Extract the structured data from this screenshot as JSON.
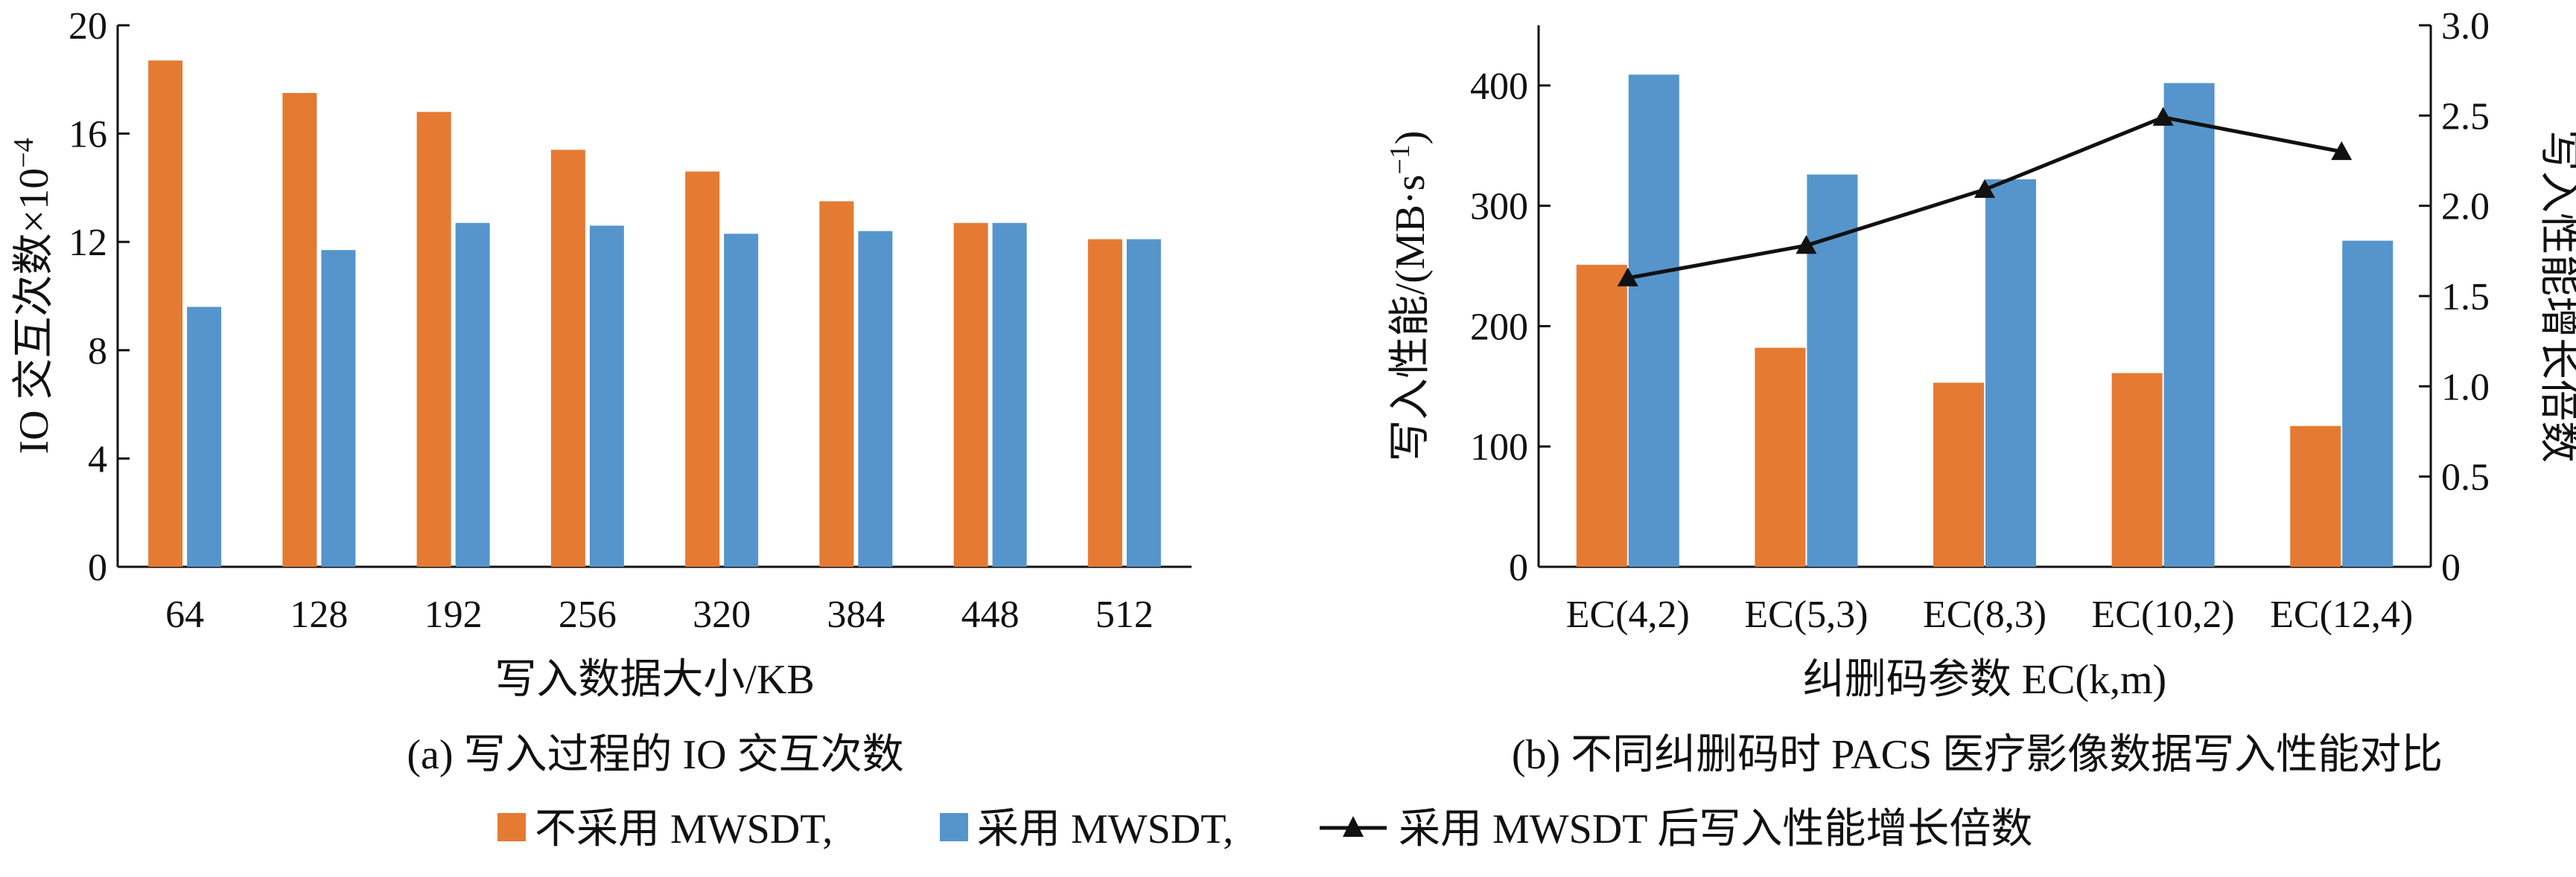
{
  "colors": {
    "no_mwsdt": "#e57a32",
    "mwsdt": "#5595cc",
    "line": "#111111"
  },
  "legend": {
    "items": [
      {
        "label": "不采用 MWSDT,",
        "marker": "orange-square"
      },
      {
        "label": "采用 MWSDT,",
        "marker": "blue-square"
      },
      {
        "label": "采用 MWSDT 后写入性能增长倍数",
        "marker": "line-triangle"
      }
    ]
  },
  "chart_data": [
    {
      "type": "bar",
      "caption": "(a)  写入过程的 IO 交互次数",
      "xlabel": "写入数据大小/KB",
      "ylabel": "IO 交互次数×10",
      "ylabel_exponent": "−4",
      "ylim": [
        0,
        20
      ],
      "yticks": [
        0,
        4,
        8,
        12,
        16,
        20
      ],
      "categories": [
        "64",
        "128",
        "192",
        "256",
        "320",
        "384",
        "448",
        "512"
      ],
      "series": [
        {
          "name": "不采用 MWSDT",
          "values": [
            18.7,
            17.5,
            16.8,
            15.4,
            14.6,
            13.5,
            12.7,
            12.1
          ]
        },
        {
          "name": "采用 MWSDT",
          "values": [
            9.6,
            11.7,
            12.7,
            12.6,
            12.3,
            12.4,
            12.7,
            12.1
          ]
        }
      ]
    },
    {
      "type": "bar",
      "caption": "(b)  不同纠删码时 PACS 医疗影像数据写入性能对比",
      "xlabel": "纠删码参数 EC(k,m)",
      "ylabel": "写入性能/(MB·s",
      "ylabel_exponent": "−1",
      "ylabel_close": ")",
      "y2label": "写入性能增长倍数",
      "ylim": [
        0,
        450
      ],
      "yticks": [
        0,
        100,
        200,
        300,
        400
      ],
      "y2lim": [
        0,
        3.0
      ],
      "y2ticks": [
        "0",
        "0.5",
        "1.0",
        "1.5",
        "2.0",
        "2.5",
        "3.0"
      ],
      "categories": [
        "EC(4,2)",
        "EC(5,3)",
        "EC(8,3)",
        "EC(10,2)",
        "EC(12,4)"
      ],
      "series": [
        {
          "name": "不采用 MWSDT",
          "values": [
            251,
            182,
            153,
            161,
            117
          ]
        },
        {
          "name": "采用 MWSDT",
          "values": [
            409,
            326,
            322,
            402,
            271
          ]
        },
        {
          "name": "采用 MWSDT 后写入性能增长倍数",
          "type": "line",
          "axis": "y2",
          "values": [
            1.6,
            1.78,
            2.09,
            2.49,
            2.3
          ]
        }
      ]
    }
  ]
}
